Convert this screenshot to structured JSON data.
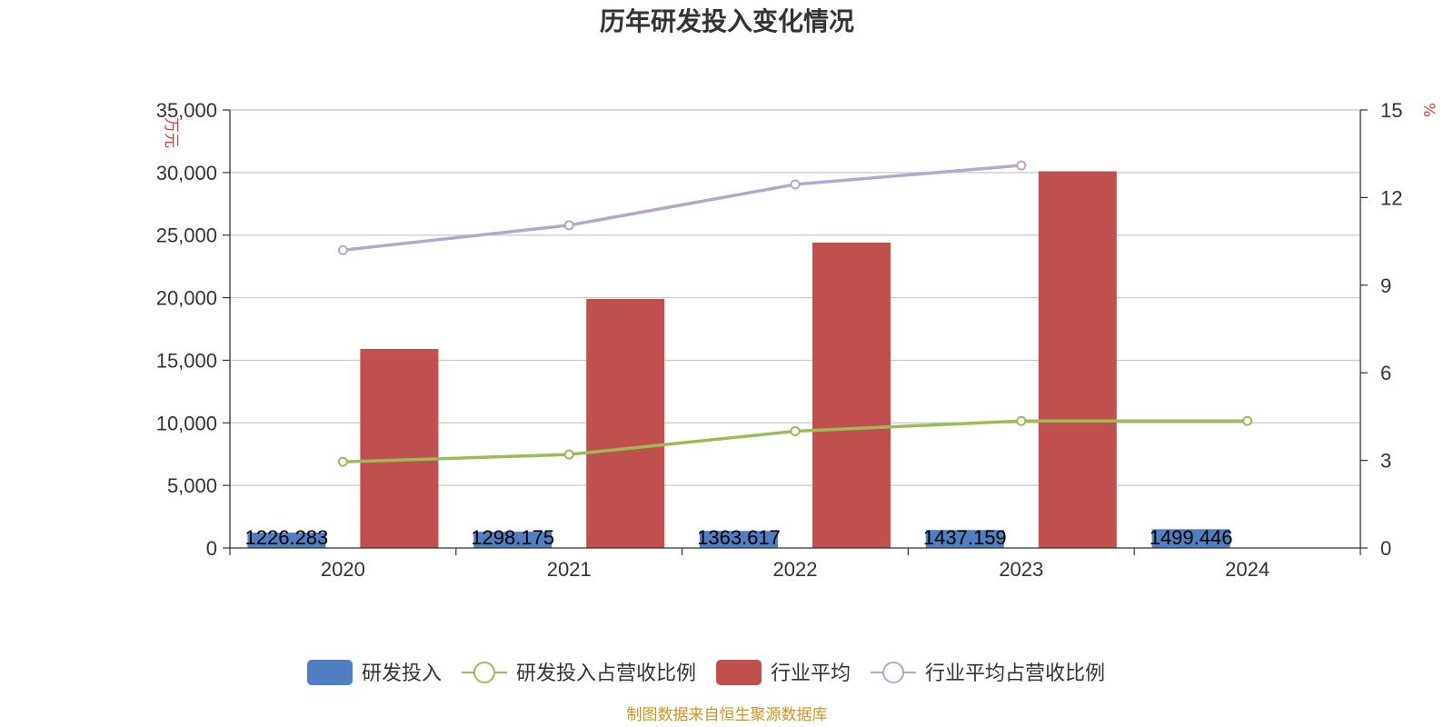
{
  "title": "历年研发投入变化情况",
  "source": "制图数据来自恒生聚源数据库",
  "chart_data": {
    "type": "bar",
    "categories": [
      "2020",
      "2021",
      "2022",
      "2023",
      "2024"
    ],
    "y_left": {
      "unit": "万元",
      "ylim": [
        0,
        35000
      ],
      "ticks": [
        "0",
        "5,000",
        "10,000",
        "15,000",
        "20,000",
        "25,000",
        "30,000",
        "35,000"
      ]
    },
    "y_right": {
      "unit": "%",
      "ylim": [
        0,
        15
      ],
      "ticks": [
        "0",
        "3",
        "6",
        "9",
        "12",
        "15"
      ]
    },
    "grid": true,
    "legend_position": "bottom",
    "series": [
      {
        "name": "研发投入",
        "type": "bar",
        "axis": "left",
        "color": "#4f7fc0",
        "values": [
          1226.283,
          1298.175,
          1363.617,
          1437.159,
          1499.446
        ],
        "labels": [
          "1226.283",
          "1298.175",
          "1363.617",
          "1437.159",
          "1499.446"
        ]
      },
      {
        "name": "研发投入占营收比例",
        "type": "line",
        "axis": "right",
        "color": "#9bbb59",
        "values": [
          2.95,
          3.2,
          4.0,
          4.35,
          4.35
        ]
      },
      {
        "name": "行业平均",
        "type": "bar",
        "axis": "left",
        "color": "#c0504d",
        "values": [
          15900,
          19900,
          24400,
          30100,
          null
        ]
      },
      {
        "name": "行业平均占营收比例",
        "type": "line",
        "axis": "right",
        "color": "#b5a6d0",
        "values": [
          10.2,
          11.05,
          12.45,
          13.1,
          null
        ]
      }
    ]
  }
}
